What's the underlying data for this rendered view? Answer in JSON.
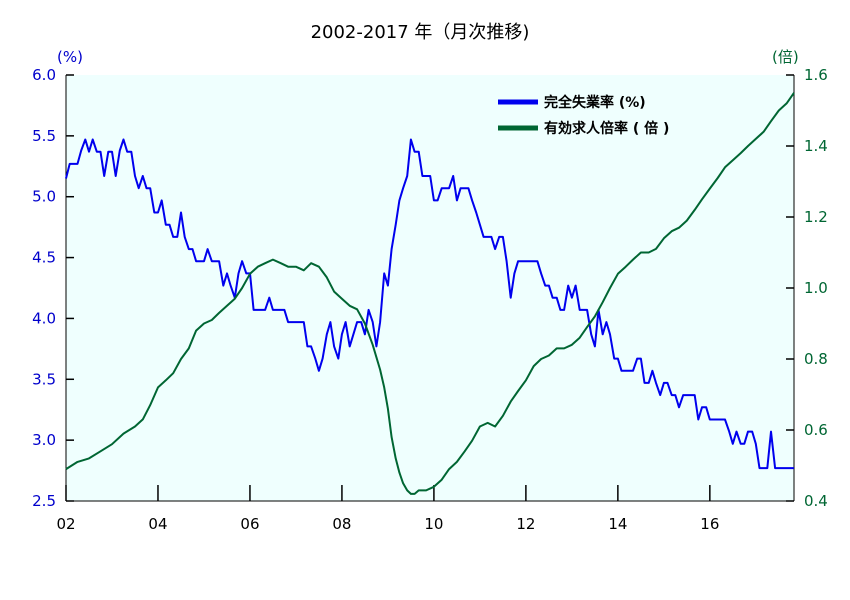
{
  "chart_data": {
    "type": "line",
    "title": "2002-2017 年（月次推移)",
    "y_left_unit": "(%)",
    "y_right_unit": "(倍)",
    "x_range": [
      2002.0,
      2017.83
    ],
    "x_tick_labels": [
      {
        "x": 2002,
        "label": "02"
      },
      {
        "x": 2004,
        "label": "04"
      },
      {
        "x": 2006,
        "label": "06"
      },
      {
        "x": 2008,
        "label": "08"
      },
      {
        "x": 2010,
        "label": "10"
      },
      {
        "x": 2012,
        "label": "12"
      },
      {
        "x": 2014,
        "label": "14"
      },
      {
        "x": 2016,
        "label": "16"
      }
    ],
    "y_left": {
      "range": [
        2.5,
        6.0
      ],
      "ticks": [
        "2.5",
        "3.0",
        "3.5",
        "4.0",
        "4.5",
        "5.0",
        "5.5",
        "6.0"
      ]
    },
    "y_right": {
      "range": [
        0.4,
        1.6
      ],
      "ticks": [
        "0.4",
        "0.6",
        "0.8",
        "1.0",
        "1.2",
        "1.4",
        "1.6"
      ]
    },
    "grid": false,
    "legend_position": "top-right",
    "colors": {
      "plot_background": "#EFFFFE",
      "unemployment": "#0000EE",
      "job_ratio": "#006633",
      "left_axis": "#0000CC",
      "right_axis": "#006633"
    },
    "series": [
      {
        "name": "完全失業率 (%)",
        "axis": "left",
        "points": [
          [
            2002.0,
            5.15
          ],
          [
            2002.08,
            5.27
          ],
          [
            2002.17,
            5.27
          ],
          [
            2002.25,
            5.27
          ],
          [
            2002.33,
            5.38
          ],
          [
            2002.42,
            5.47
          ],
          [
            2002.5,
            5.37
          ],
          [
            2002.58,
            5.47
          ],
          [
            2002.67,
            5.37
          ],
          [
            2002.75,
            5.37
          ],
          [
            2002.83,
            5.17
          ],
          [
            2002.92,
            5.37
          ],
          [
            2003.0,
            5.37
          ],
          [
            2003.08,
            5.17
          ],
          [
            2003.17,
            5.38
          ],
          [
            2003.25,
            5.47
          ],
          [
            2003.33,
            5.37
          ],
          [
            2003.42,
            5.37
          ],
          [
            2003.5,
            5.17
          ],
          [
            2003.58,
            5.07
          ],
          [
            2003.67,
            5.17
          ],
          [
            2003.75,
            5.07
          ],
          [
            2003.83,
            5.07
          ],
          [
            2003.92,
            4.87
          ],
          [
            2004.0,
            4.87
          ],
          [
            2004.08,
            4.97
          ],
          [
            2004.17,
            4.77
          ],
          [
            2004.25,
            4.77
          ],
          [
            2004.33,
            4.67
          ],
          [
            2004.42,
            4.67
          ],
          [
            2004.5,
            4.87
          ],
          [
            2004.58,
            4.67
          ],
          [
            2004.67,
            4.57
          ],
          [
            2004.75,
            4.57
          ],
          [
            2004.83,
            4.47
          ],
          [
            2004.92,
            4.47
          ],
          [
            2005.0,
            4.47
          ],
          [
            2005.08,
            4.57
          ],
          [
            2005.17,
            4.47
          ],
          [
            2005.25,
            4.47
          ],
          [
            2005.33,
            4.47
          ],
          [
            2005.42,
            4.27
          ],
          [
            2005.5,
            4.37
          ],
          [
            2005.58,
            4.27
          ],
          [
            2005.67,
            4.17
          ],
          [
            2005.75,
            4.37
          ],
          [
            2005.83,
            4.47
          ],
          [
            2005.92,
            4.37
          ],
          [
            2006.0,
            4.37
          ],
          [
            2006.08,
            4.07
          ],
          [
            2006.17,
            4.07
          ],
          [
            2006.25,
            4.07
          ],
          [
            2006.33,
            4.07
          ],
          [
            2006.42,
            4.17
          ],
          [
            2006.5,
            4.07
          ],
          [
            2006.58,
            4.07
          ],
          [
            2006.67,
            4.07
          ],
          [
            2006.75,
            4.07
          ],
          [
            2006.83,
            3.97
          ],
          [
            2006.92,
            3.97
          ],
          [
            2007.0,
            3.97
          ],
          [
            2007.08,
            3.97
          ],
          [
            2007.17,
            3.97
          ],
          [
            2007.25,
            3.77
          ],
          [
            2007.33,
            3.77
          ],
          [
            2007.42,
            3.67
          ],
          [
            2007.5,
            3.57
          ],
          [
            2007.58,
            3.67
          ],
          [
            2007.67,
            3.87
          ],
          [
            2007.75,
            3.97
          ],
          [
            2007.83,
            3.77
          ],
          [
            2007.92,
            3.67
          ],
          [
            2008.0,
            3.87
          ],
          [
            2008.08,
            3.97
          ],
          [
            2008.17,
            3.77
          ],
          [
            2008.25,
            3.87
          ],
          [
            2008.33,
            3.97
          ],
          [
            2008.42,
            3.97
          ],
          [
            2008.5,
            3.87
          ],
          [
            2008.58,
            4.07
          ],
          [
            2008.67,
            3.97
          ],
          [
            2008.75,
            3.77
          ],
          [
            2008.83,
            3.97
          ],
          [
            2008.92,
            4.37
          ],
          [
            2009.0,
            4.27
          ],
          [
            2009.08,
            4.57
          ],
          [
            2009.17,
            4.77
          ],
          [
            2009.25,
            4.97
          ],
          [
            2009.33,
            5.07
          ],
          [
            2009.42,
            5.17
          ],
          [
            2009.5,
            5.47
          ],
          [
            2009.58,
            5.37
          ],
          [
            2009.67,
            5.37
          ],
          [
            2009.75,
            5.17
          ],
          [
            2009.83,
            5.17
          ],
          [
            2009.92,
            5.17
          ],
          [
            2010.0,
            4.97
          ],
          [
            2010.08,
            4.97
          ],
          [
            2010.17,
            5.07
          ],
          [
            2010.25,
            5.07
          ],
          [
            2010.33,
            5.07
          ],
          [
            2010.42,
            5.17
          ],
          [
            2010.5,
            4.97
          ],
          [
            2010.58,
            5.07
          ],
          [
            2010.67,
            5.07
          ],
          [
            2010.75,
            5.07
          ],
          [
            2010.83,
            4.97
          ],
          [
            2010.92,
            4.87
          ],
          [
            2011.0,
            4.77
          ],
          [
            2011.08,
            4.67
          ],
          [
            2011.17,
            4.67
          ],
          [
            2011.25,
            4.67
          ],
          [
            2011.33,
            4.57
          ],
          [
            2011.42,
            4.67
          ],
          [
            2011.5,
            4.67
          ],
          [
            2011.58,
            4.47
          ],
          [
            2011.67,
            4.17
          ],
          [
            2011.75,
            4.37
          ],
          [
            2011.83,
            4.47
          ],
          [
            2011.92,
            4.47
          ],
          [
            2012.0,
            4.47
          ],
          [
            2012.08,
            4.47
          ],
          [
            2012.17,
            4.47
          ],
          [
            2012.25,
            4.47
          ],
          [
            2012.33,
            4.37
          ],
          [
            2012.42,
            4.27
          ],
          [
            2012.5,
            4.27
          ],
          [
            2012.58,
            4.17
          ],
          [
            2012.67,
            4.17
          ],
          [
            2012.75,
            4.07
          ],
          [
            2012.83,
            4.07
          ],
          [
            2012.92,
            4.27
          ],
          [
            2013.0,
            4.17
          ],
          [
            2013.08,
            4.27
          ],
          [
            2013.17,
            4.07
          ],
          [
            2013.25,
            4.07
          ],
          [
            2013.33,
            4.07
          ],
          [
            2013.42,
            3.87
          ],
          [
            2013.5,
            3.77
          ],
          [
            2013.58,
            4.07
          ],
          [
            2013.67,
            3.87
          ],
          [
            2013.75,
            3.97
          ],
          [
            2013.83,
            3.87
          ],
          [
            2013.92,
            3.67
          ],
          [
            2014.0,
            3.67
          ],
          [
            2014.08,
            3.57
          ],
          [
            2014.17,
            3.57
          ],
          [
            2014.25,
            3.57
          ],
          [
            2014.33,
            3.57
          ],
          [
            2014.42,
            3.67
          ],
          [
            2014.5,
            3.67
          ],
          [
            2014.58,
            3.47
          ],
          [
            2014.67,
            3.47
          ],
          [
            2014.75,
            3.57
          ],
          [
            2014.83,
            3.47
          ],
          [
            2014.92,
            3.37
          ],
          [
            2015.0,
            3.47
          ],
          [
            2015.08,
            3.47
          ],
          [
            2015.17,
            3.37
          ],
          [
            2015.25,
            3.37
          ],
          [
            2015.33,
            3.27
          ],
          [
            2015.42,
            3.37
          ],
          [
            2015.5,
            3.37
          ],
          [
            2015.58,
            3.37
          ],
          [
            2015.67,
            3.37
          ],
          [
            2015.75,
            3.17
          ],
          [
            2015.83,
            3.27
          ],
          [
            2015.92,
            3.27
          ],
          [
            2016.0,
            3.17
          ],
          [
            2016.08,
            3.17
          ],
          [
            2016.17,
            3.17
          ],
          [
            2016.25,
            3.17
          ],
          [
            2016.33,
            3.17
          ],
          [
            2016.42,
            3.07
          ],
          [
            2016.5,
            2.97
          ],
          [
            2016.58,
            3.07
          ],
          [
            2016.67,
            2.97
          ],
          [
            2016.75,
            2.97
          ],
          [
            2016.83,
            3.07
          ],
          [
            2016.92,
            3.07
          ],
          [
            2017.0,
            2.97
          ],
          [
            2017.08,
            2.77
          ],
          [
            2017.17,
            2.77
          ],
          [
            2017.25,
            2.77
          ],
          [
            2017.33,
            3.07
          ],
          [
            2017.42,
            2.77
          ],
          [
            2017.5,
            2.77
          ],
          [
            2017.58,
            2.77
          ],
          [
            2017.67,
            2.77
          ],
          [
            2017.75,
            2.77
          ],
          [
            2017.83,
            2.77
          ]
        ]
      },
      {
        "name": "有効求人倍率 ( 倍 )",
        "axis": "right",
        "points": [
          [
            2002.0,
            0.49
          ],
          [
            2002.25,
            0.51
          ],
          [
            2002.5,
            0.52
          ],
          [
            2002.75,
            0.54
          ],
          [
            2003.0,
            0.56
          ],
          [
            2003.25,
            0.59
          ],
          [
            2003.5,
            0.61
          ],
          [
            2003.67,
            0.63
          ],
          [
            2003.83,
            0.67
          ],
          [
            2004.0,
            0.72
          ],
          [
            2004.17,
            0.74
          ],
          [
            2004.33,
            0.76
          ],
          [
            2004.5,
            0.8
          ],
          [
            2004.67,
            0.83
          ],
          [
            2004.83,
            0.88
          ],
          [
            2005.0,
            0.9
          ],
          [
            2005.17,
            0.91
          ],
          [
            2005.33,
            0.93
          ],
          [
            2005.5,
            0.95
          ],
          [
            2005.67,
            0.97
          ],
          [
            2005.83,
            1.0
          ],
          [
            2006.0,
            1.04
          ],
          [
            2006.17,
            1.06
          ],
          [
            2006.33,
            1.07
          ],
          [
            2006.5,
            1.08
          ],
          [
            2006.67,
            1.07
          ],
          [
            2006.83,
            1.06
          ],
          [
            2007.0,
            1.06
          ],
          [
            2007.17,
            1.05
          ],
          [
            2007.33,
            1.07
          ],
          [
            2007.5,
            1.06
          ],
          [
            2007.67,
            1.03
          ],
          [
            2007.83,
            0.99
          ],
          [
            2008.0,
            0.97
          ],
          [
            2008.17,
            0.95
          ],
          [
            2008.33,
            0.94
          ],
          [
            2008.5,
            0.9
          ],
          [
            2008.67,
            0.84
          ],
          [
            2008.83,
            0.77
          ],
          [
            2008.92,
            0.72
          ],
          [
            2009.0,
            0.66
          ],
          [
            2009.08,
            0.58
          ],
          [
            2009.17,
            0.52
          ],
          [
            2009.25,
            0.48
          ],
          [
            2009.33,
            0.45
          ],
          [
            2009.42,
            0.43
          ],
          [
            2009.5,
            0.42
          ],
          [
            2009.58,
            0.42
          ],
          [
            2009.67,
            0.43
          ],
          [
            2009.83,
            0.43
          ],
          [
            2010.0,
            0.44
          ],
          [
            2010.17,
            0.46
          ],
          [
            2010.33,
            0.49
          ],
          [
            2010.5,
            0.51
          ],
          [
            2010.67,
            0.54
          ],
          [
            2010.83,
            0.57
          ],
          [
            2011.0,
            0.61
          ],
          [
            2011.17,
            0.62
          ],
          [
            2011.33,
            0.61
          ],
          [
            2011.5,
            0.64
          ],
          [
            2011.67,
            0.68
          ],
          [
            2011.83,
            0.71
          ],
          [
            2012.0,
            0.74
          ],
          [
            2012.17,
            0.78
          ],
          [
            2012.33,
            0.8
          ],
          [
            2012.5,
            0.81
          ],
          [
            2012.67,
            0.83
          ],
          [
            2012.83,
            0.83
          ],
          [
            2013.0,
            0.84
          ],
          [
            2013.17,
            0.86
          ],
          [
            2013.33,
            0.89
          ],
          [
            2013.5,
            0.92
          ],
          [
            2013.67,
            0.96
          ],
          [
            2013.83,
            1.0
          ],
          [
            2014.0,
            1.04
          ],
          [
            2014.17,
            1.06
          ],
          [
            2014.33,
            1.08
          ],
          [
            2014.5,
            1.1
          ],
          [
            2014.67,
            1.1
          ],
          [
            2014.83,
            1.11
          ],
          [
            2015.0,
            1.14
          ],
          [
            2015.17,
            1.16
          ],
          [
            2015.33,
            1.17
          ],
          [
            2015.5,
            1.19
          ],
          [
            2015.67,
            1.22
          ],
          [
            2015.83,
            1.25
          ],
          [
            2016.0,
            1.28
          ],
          [
            2016.17,
            1.31
          ],
          [
            2016.33,
            1.34
          ],
          [
            2016.5,
            1.36
          ],
          [
            2016.67,
            1.38
          ],
          [
            2016.83,
            1.4
          ],
          [
            2017.0,
            1.42
          ],
          [
            2017.17,
            1.44
          ],
          [
            2017.33,
            1.47
          ],
          [
            2017.5,
            1.5
          ],
          [
            2017.67,
            1.52
          ],
          [
            2017.83,
            1.55
          ]
        ]
      }
    ]
  }
}
